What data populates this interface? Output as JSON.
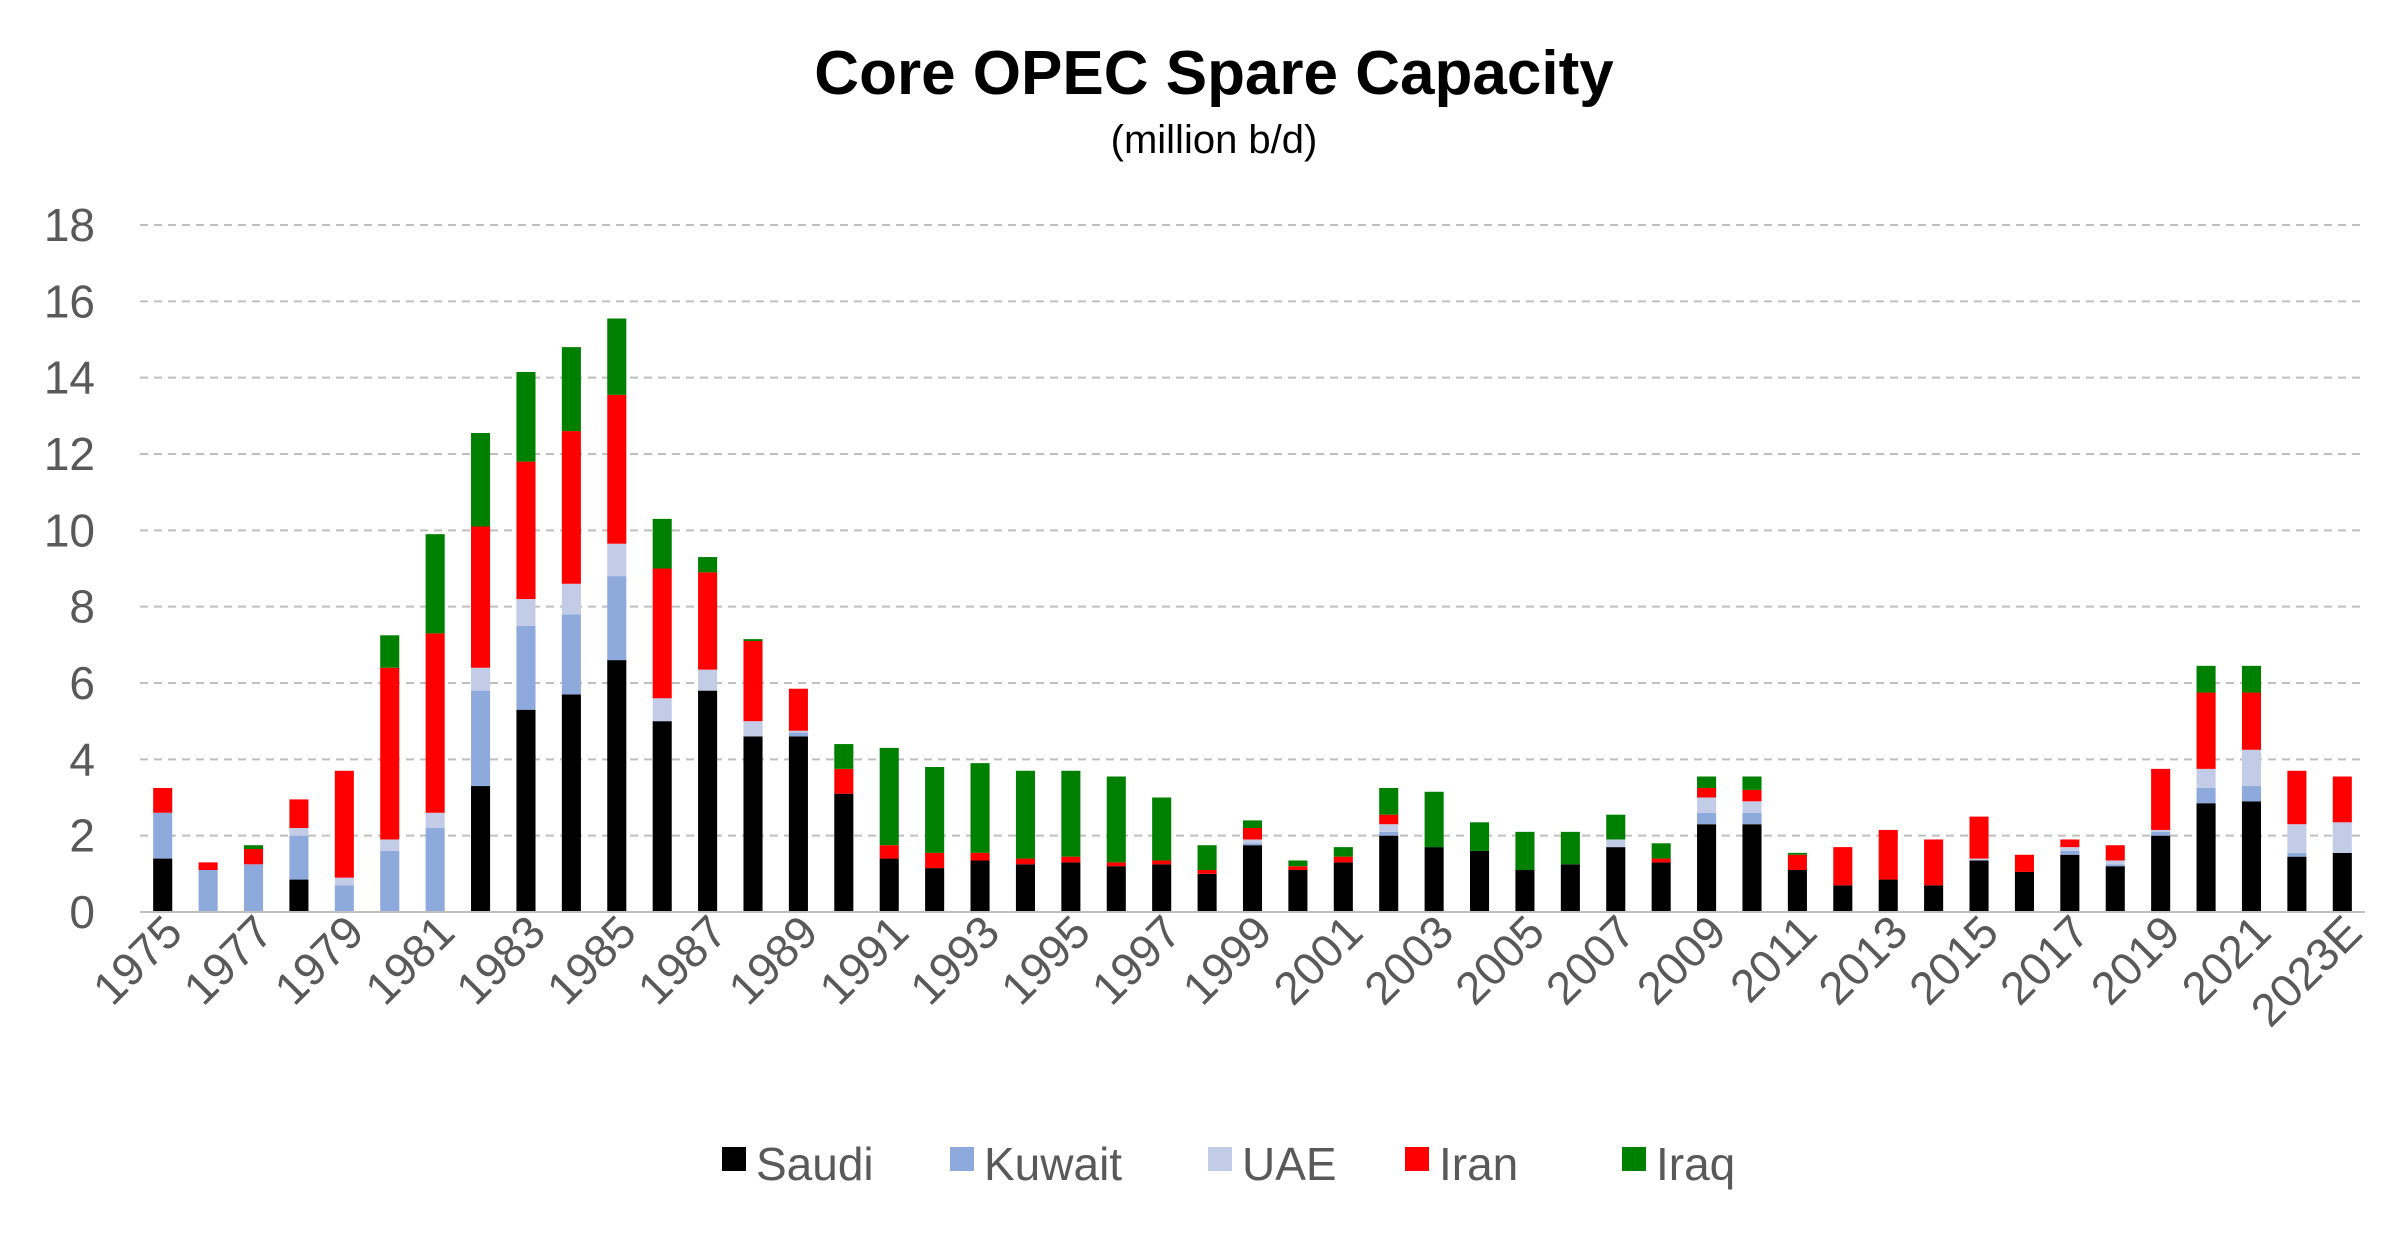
{
  "chart_data": {
    "type": "bar",
    "stacked": true,
    "title": "Core OPEC Spare Capacity",
    "subtitle": "(million b/d)",
    "xlabel": "",
    "ylabel": "",
    "ylim": [
      0,
      18
    ],
    "yticks": [
      0,
      2,
      4,
      6,
      8,
      10,
      12,
      14,
      16,
      18
    ],
    "grid": true,
    "legend_position": "bottom",
    "categories": [
      "1975",
      "1976",
      "1977",
      "1978",
      "1979",
      "1980",
      "1981",
      "1982",
      "1983",
      "1984",
      "1985",
      "1986",
      "1987",
      "1988",
      "1989",
      "1990",
      "1991",
      "1992",
      "1993",
      "1994",
      "1995",
      "1996",
      "1997",
      "1998",
      "1999",
      "2000",
      "2001",
      "2002",
      "2003",
      "2004",
      "2005",
      "2006",
      "2007",
      "2008",
      "2009",
      "2010",
      "2011",
      "2012",
      "2013",
      "2014",
      "2015",
      "2016",
      "2017",
      "2018",
      "2019",
      "2020",
      "2021",
      "2022",
      "2023E"
    ],
    "x_tick_labels": [
      "1975",
      "1977",
      "1979",
      "1981",
      "1983",
      "1985",
      "1987",
      "1989",
      "1991",
      "1993",
      "1995",
      "1997",
      "1999",
      "2001",
      "2003",
      "2005",
      "2007",
      "2009",
      "2011",
      "2013",
      "2015",
      "2017",
      "2019",
      "2021",
      "2023E"
    ],
    "series": [
      {
        "name": "Saudi",
        "color": "#000000",
        "values": [
          1.4,
          0.0,
          0.0,
          0.85,
          0.0,
          0.0,
          0.0,
          3.3,
          5.3,
          5.7,
          6.6,
          5.0,
          5.8,
          4.6,
          4.6,
          3.1,
          1.4,
          1.15,
          1.35,
          1.25,
          1.3,
          1.2,
          1.25,
          1.0,
          1.75,
          1.1,
          1.3,
          2.0,
          1.7,
          1.6,
          1.1,
          1.25,
          1.7,
          1.3,
          2.3,
          2.3,
          1.1,
          0.7,
          0.85,
          0.7,
          1.35,
          1.05,
          1.5,
          1.2,
          2.0,
          2.85,
          2.9,
          1.45,
          1.55
        ]
      },
      {
        "name": "Kuwait",
        "color": "#8EA9DB",
        "values": [
          1.2,
          1.1,
          1.25,
          1.15,
          0.7,
          1.6,
          2.2,
          2.5,
          2.2,
          2.1,
          2.2,
          0.0,
          0.0,
          0.0,
          0.1,
          0.0,
          0.0,
          0.0,
          0.0,
          0.0,
          0.0,
          0.0,
          0.0,
          0.0,
          0.05,
          0.0,
          0.0,
          0.1,
          0.0,
          0.0,
          0.0,
          0.0,
          0.0,
          0.0,
          0.3,
          0.3,
          0.0,
          0.0,
          0.0,
          0.0,
          0.0,
          0.0,
          0.1,
          0.05,
          0.1,
          0.4,
          0.4,
          0.1,
          0.0
        ]
      },
      {
        "name": "UAE",
        "color": "#C3CCE6",
        "values": [
          0.0,
          0.0,
          0.0,
          0.2,
          0.2,
          0.3,
          0.4,
          0.6,
          0.7,
          0.8,
          0.85,
          0.6,
          0.55,
          0.4,
          0.05,
          0.0,
          0.0,
          0.0,
          0.0,
          0.0,
          0.0,
          0.0,
          0.0,
          0.0,
          0.1,
          0.0,
          0.0,
          0.2,
          0.0,
          0.0,
          0.0,
          0.0,
          0.2,
          0.0,
          0.4,
          0.3,
          0.0,
          0.0,
          0.0,
          0.0,
          0.05,
          0.0,
          0.1,
          0.1,
          0.05,
          0.5,
          0.95,
          0.75,
          0.8
        ]
      },
      {
        "name": "Iran",
        "color": "#FF0000",
        "values": [
          0.65,
          0.2,
          0.4,
          0.75,
          2.8,
          4.5,
          4.7,
          3.7,
          3.6,
          4.0,
          3.9,
          3.4,
          2.55,
          2.1,
          1.1,
          0.65,
          0.35,
          0.4,
          0.2,
          0.15,
          0.15,
          0.1,
          0.1,
          0.1,
          0.3,
          0.1,
          0.15,
          0.25,
          0.0,
          0.0,
          0.0,
          0.0,
          0.0,
          0.1,
          0.25,
          0.3,
          0.4,
          1.0,
          1.3,
          1.2,
          1.1,
          0.45,
          0.2,
          0.4,
          1.6,
          2.0,
          1.5,
          1.4,
          1.2
        ]
      },
      {
        "name": "Iraq",
        "color": "#008000",
        "values": [
          0.0,
          0.0,
          0.1,
          0.0,
          0.0,
          0.85,
          2.6,
          2.45,
          2.35,
          2.2,
          2.0,
          1.3,
          0.4,
          0.05,
          0.0,
          0.65,
          2.55,
          2.25,
          2.35,
          2.3,
          2.25,
          2.25,
          1.65,
          0.65,
          0.2,
          0.15,
          0.25,
          0.7,
          1.45,
          0.75,
          1.0,
          0.85,
          0.65,
          0.4,
          0.3,
          0.35,
          0.05,
          0.0,
          0.0,
          0.0,
          0.0,
          0.0,
          0.0,
          0.0,
          0.0,
          0.7,
          0.7,
          0.0,
          0.0
        ]
      }
    ]
  }
}
